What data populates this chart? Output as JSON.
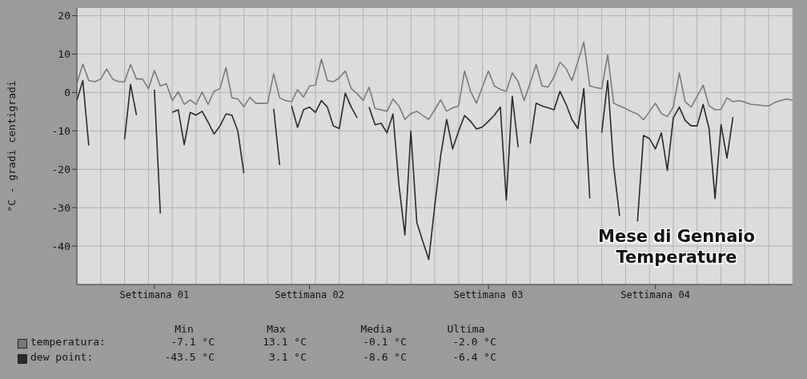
{
  "chart_data": {
    "type": "line",
    "ylabel": "°C - gradi centigradi",
    "categories": [
      null,
      null,
      null,
      null,
      null,
      null,
      null,
      null,
      null,
      null,
      null,
      null,
      null,
      "Settimana 01",
      null,
      null,
      null,
      null,
      null,
      null,
      null,
      null,
      null,
      null,
      null,
      null,
      null,
      null,
      null,
      null,
      null,
      null,
      null,
      null,
      null,
      null,
      null,
      null,
      null,
      "Settimana 02",
      null,
      null,
      null,
      null,
      null,
      null,
      null,
      null,
      null,
      null,
      null,
      null,
      null,
      null,
      null,
      null,
      null,
      null,
      null,
      null,
      null,
      null,
      null,
      null,
      null,
      null,
      null,
      null,
      null,
      "Settimana 03",
      null,
      null,
      null,
      null,
      null,
      null,
      null,
      null,
      null,
      null,
      null,
      null,
      null,
      null,
      null,
      null,
      null,
      null,
      null,
      null,
      null,
      null,
      null,
      null,
      null,
      null,
      null,
      "Settimana 04",
      null,
      null,
      null,
      null,
      null,
      null,
      null,
      null,
      null,
      null,
      null,
      null,
      null,
      null,
      null,
      null,
      null,
      null,
      null,
      null,
      null,
      null,
      null
    ],
    "ylim": [
      -50,
      22
    ],
    "yticks": [
      -40,
      -30,
      -20,
      -10,
      0,
      10,
      20
    ],
    "grid": true,
    "legend": "bottom",
    "annotations": [
      "Mese di Gennaio",
      "Temperature",
      "Min",
      "Max",
      "Media",
      "Ultima",
      "-7.1 °C",
      "13.1 °C",
      "-0.1 °C",
      "-2.0 °C",
      "-43.5 °C",
      "3.1 °C",
      "-8.6 °C",
      "-6.4 °C"
    ],
    "series": [
      {
        "name": "temperatura:",
        "color": "#7a7a7a",
        "values": [
          2.4,
          7.4,
          3.1,
          2.8,
          3.5,
          6.1,
          3.5,
          2.8,
          2.8,
          7.3,
          3.5,
          3.5,
          1,
          5.7,
          1.7,
          2.3,
          -2.1,
          0.2,
          -3.1,
          -1.9,
          -3.1,
          0.1,
          -3.1,
          0.3,
          1,
          6.5,
          -1.4,
          -1.7,
          -3.7,
          -1.3,
          -2.8,
          -2.8,
          -2.8,
          4.9,
          -1.4,
          -2.1,
          -2.4,
          0.7,
          -1.2,
          1.7,
          1.9,
          8.7,
          3.1,
          2.8,
          3.8,
          5.6,
          1,
          -0.3,
          -2.1,
          1.4,
          -4.2,
          -4.5,
          -4.9,
          -1.7,
          -3.5,
          -7,
          -5.5,
          -4.9,
          -6,
          -7,
          -4.5,
          -1.9,
          -4.9,
          -4,
          -3.5,
          5.6,
          0.3,
          -2.8,
          1.5,
          5.6,
          1.7,
          0.8,
          0.3,
          5.1,
          2.8,
          -2.1,
          2.5,
          7.3,
          1.7,
          1.4,
          4,
          7.9,
          6.3,
          3.1,
          8,
          13.1,
          1.7,
          1.3,
          1,
          9.8,
          -2.8,
          -3.5,
          -4.2,
          -5,
          -5.6,
          -7.1,
          -5,
          -2.8,
          -5.5,
          -6.3,
          -3.8,
          5.1,
          -2.4,
          -3.8,
          -1,
          1.9,
          -3.5,
          -4.5,
          -4.4,
          -1.4,
          -2.4,
          -2.1,
          -2.5,
          -3.1,
          -3.2,
          -3.4,
          -3.5,
          -2.6,
          -2.1,
          -1.7,
          -2
        ]
      },
      {
        "name": "dew point:",
        "color": "#2a2a2a",
        "values": [
          -2.1,
          3.1,
          -13.8,
          null,
          null,
          null,
          null,
          null,
          -12.2,
          2.1,
          -5.9,
          null,
          null,
          0.7,
          -31.5,
          null,
          -5.2,
          -4.5,
          -13.6,
          -5.2,
          -5.9,
          -4.9,
          -7.7,
          -10.8,
          -8.7,
          -5.6,
          -5.9,
          -10.1,
          -21,
          null,
          null,
          null,
          null,
          -4.2,
          -18.9,
          null,
          -3.5,
          -9.1,
          -4.5,
          -3.8,
          -5.2,
          -2.1,
          -3.8,
          -8.7,
          -9.4,
          -0.2,
          -3.8,
          -6.6,
          null,
          -3.8,
          -8.4,
          -8,
          -10.5,
          -5.6,
          -24.1,
          -37.1,
          -10.1,
          -33.9,
          -38.8,
          -43.5,
          -29.6,
          -16.4,
          -7,
          -14.7,
          -10.1,
          -6,
          -7.5,
          -9.5,
          -9,
          -7.5,
          -5.9,
          -3.8,
          -28,
          -1,
          -14.3,
          null,
          -13.3,
          -2.8,
          -3.5,
          -4,
          -4.5,
          0.3,
          -3,
          -7,
          -9.4,
          1,
          -27.6,
          null,
          -10.5,
          3.1,
          -19.2,
          -32.2,
          null,
          null,
          -33.6,
          -11.2,
          -12,
          -14.7,
          -10.5,
          -20.3,
          -6.6,
          -3.8,
          -7.3,
          -8.7,
          -8.7,
          -3.1,
          -9.4,
          -27.6,
          -8.4,
          -17.1,
          -6.4,
          null,
          null,
          null,
          null,
          null,
          null,
          null,
          null,
          null,
          null
        ]
      }
    ]
  }
}
